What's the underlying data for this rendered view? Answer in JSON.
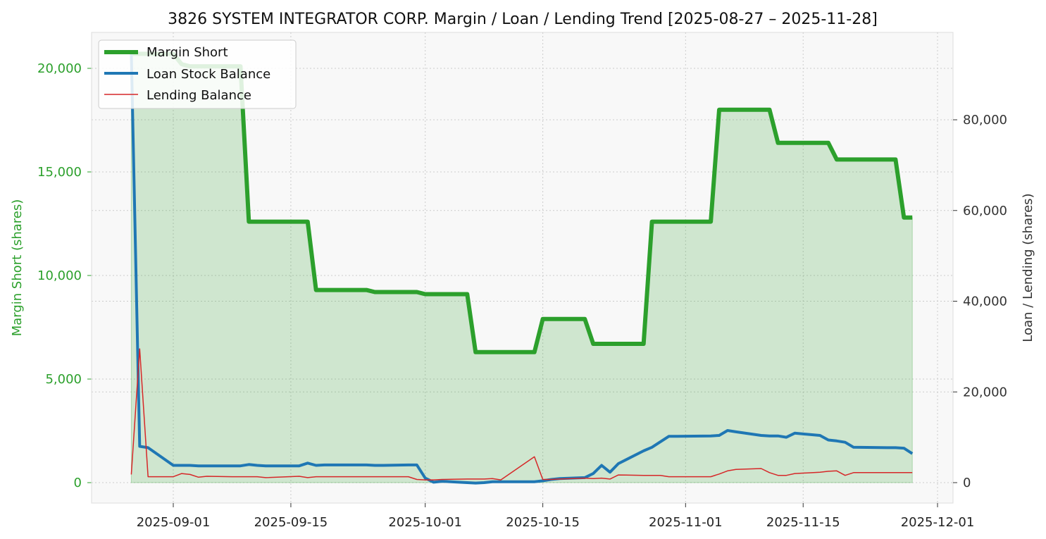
{
  "chart_data": {
    "type": "line",
    "title": "3826 SYSTEM INTEGRATOR CORP. Margin / Loan / Lending Trend [2025-08-27 – 2025-11-28]",
    "xlabel": "",
    "ylabel_left": "Margin Short (shares)",
    "ylabel_right": "Loan / Lending (shares)",
    "x_ticks": [
      "2025-09-01",
      "2025-09-15",
      "2025-10-01",
      "2025-10-15",
      "2025-11-01",
      "2025-11-15",
      "2025-12-01"
    ],
    "y_left_ticks": [
      "0",
      "5,000",
      "10,000",
      "15,000",
      "20,000"
    ],
    "y_right_ticks": [
      "0",
      "20,000",
      "40,000",
      "60,000",
      "80,000"
    ],
    "y_left_lim": [
      -1000,
      21700
    ],
    "y_right_lim": [
      -4500,
      99000
    ],
    "grid": true,
    "legend_position": "top-left",
    "colors": {
      "margin": "#2ca02c",
      "margin_fill": "#2ca02c",
      "loan": "#1f77b4",
      "lending": "#d62728",
      "left_axis": "#2ca02c",
      "right_axis": "#333333",
      "grid": "#cccccc",
      "plot_bg": "#f8f8f8",
      "frame": "#dddddd"
    },
    "series": [
      {
        "name": "Margin Short",
        "axis": "left",
        "color": "#2ca02c",
        "line_width": 6,
        "fill": true,
        "x": [
          "2025-08-27",
          "2025-08-28",
          "2025-08-29",
          "2025-09-01",
          "2025-09-02",
          "2025-09-03",
          "2025-09-04",
          "2025-09-05",
          "2025-09-08",
          "2025-09-09",
          "2025-09-10",
          "2025-09-11",
          "2025-09-12",
          "2025-09-16",
          "2025-09-17",
          "2025-09-18",
          "2025-09-19",
          "2025-09-22",
          "2025-09-24",
          "2025-09-25",
          "2025-09-26",
          "2025-09-29",
          "2025-09-30",
          "2025-10-01",
          "2025-10-02",
          "2025-10-03",
          "2025-10-06",
          "2025-10-07",
          "2025-10-08",
          "2025-10-09",
          "2025-10-10",
          "2025-10-14",
          "2025-10-15",
          "2025-10-16",
          "2025-10-17",
          "2025-10-20",
          "2025-10-21",
          "2025-10-22",
          "2025-10-23",
          "2025-10-24",
          "2025-10-27",
          "2025-10-28",
          "2025-10-29",
          "2025-10-30",
          "2025-10-31",
          "2025-11-04",
          "2025-11-05",
          "2025-11-06",
          "2025-11-07",
          "2025-11-10",
          "2025-11-11",
          "2025-11-12",
          "2025-11-13",
          "2025-11-14",
          "2025-11-17",
          "2025-11-18",
          "2025-11-19",
          "2025-11-20",
          "2025-11-21",
          "2025-11-25",
          "2025-11-26",
          "2025-11-27",
          "2025-11-28"
        ],
        "values": [
          20700,
          20700,
          20700,
          20700,
          20200,
          20100,
          20100,
          20100,
          20100,
          20100,
          12600,
          12600,
          12600,
          12600,
          12600,
          9300,
          9300,
          9300,
          9300,
          9200,
          9200,
          9200,
          9200,
          9100,
          9100,
          9100,
          9100,
          6300,
          6300,
          6300,
          6300,
          6300,
          7900,
          7900,
          7900,
          7900,
          6700,
          6700,
          6700,
          6700,
          6700,
          12600,
          12600,
          12600,
          12600,
          12600,
          18000,
          18000,
          18000,
          18000,
          18000,
          16400,
          16400,
          16400,
          16400,
          16400,
          15600,
          15600,
          15600,
          15600,
          15600,
          12800,
          12800
        ]
      },
      {
        "name": "Loan Stock Balance",
        "axis": "right",
        "color": "#1f77b4",
        "line_width": 4,
        "fill": false,
        "x": [
          "2025-08-27",
          "2025-08-28",
          "2025-08-29",
          "2025-09-01",
          "2025-09-02",
          "2025-09-03",
          "2025-09-04",
          "2025-09-05",
          "2025-09-08",
          "2025-09-09",
          "2025-09-10",
          "2025-09-11",
          "2025-09-12",
          "2025-09-16",
          "2025-09-17",
          "2025-09-18",
          "2025-09-19",
          "2025-09-22",
          "2025-09-24",
          "2025-09-25",
          "2025-09-26",
          "2025-09-29",
          "2025-09-30",
          "2025-10-01",
          "2025-10-02",
          "2025-10-03",
          "2025-10-06",
          "2025-10-07",
          "2025-10-08",
          "2025-10-09",
          "2025-10-10",
          "2025-10-14",
          "2025-10-15",
          "2025-10-16",
          "2025-10-17",
          "2025-10-20",
          "2025-10-21",
          "2025-10-22",
          "2025-10-23",
          "2025-10-24",
          "2025-10-27",
          "2025-10-28",
          "2025-10-29",
          "2025-10-30",
          "2025-10-31",
          "2025-11-04",
          "2025-11-05",
          "2025-11-06",
          "2025-11-07",
          "2025-11-10",
          "2025-11-11",
          "2025-11-12",
          "2025-11-13",
          "2025-11-14",
          "2025-11-17",
          "2025-11-18",
          "2025-11-19",
          "2025-11-20",
          "2025-11-21",
          "2025-11-25",
          "2025-11-26",
          "2025-11-27",
          "2025-11-28"
        ],
        "values": [
          95000,
          8000,
          7700,
          3800,
          3800,
          3800,
          3700,
          3700,
          3700,
          3700,
          4000,
          3800,
          3700,
          3700,
          4300,
          3800,
          3900,
          3900,
          3900,
          3800,
          3800,
          3900,
          3900,
          1000,
          100,
          300,
          0,
          -100,
          0,
          200,
          200,
          200,
          400,
          700,
          900,
          1100,
          2000,
          3800,
          2300,
          4200,
          7000,
          7800,
          9000,
          10200,
          10200,
          10300,
          10400,
          11500,
          11200,
          10400,
          10300,
          10300,
          10000,
          10900,
          10400,
          9400,
          9200,
          8900,
          7800,
          7700,
          7700,
          7600,
          6400
        ]
      },
      {
        "name": "Lending Balance",
        "axis": "right",
        "color": "#d62728",
        "line_width": 1.5,
        "fill": false,
        "x": [
          "2025-08-27",
          "2025-08-28",
          "2025-08-29",
          "2025-09-01",
          "2025-09-02",
          "2025-09-03",
          "2025-09-04",
          "2025-09-05",
          "2025-09-08",
          "2025-09-09",
          "2025-09-10",
          "2025-09-11",
          "2025-09-12",
          "2025-09-16",
          "2025-09-17",
          "2025-09-18",
          "2025-09-19",
          "2025-09-22",
          "2025-09-24",
          "2025-09-25",
          "2025-09-26",
          "2025-09-29",
          "2025-09-30",
          "2025-10-01",
          "2025-10-02",
          "2025-10-03",
          "2025-10-06",
          "2025-10-07",
          "2025-10-08",
          "2025-10-09",
          "2025-10-10",
          "2025-10-14",
          "2025-10-15",
          "2025-10-16",
          "2025-10-17",
          "2025-10-20",
          "2025-10-21",
          "2025-10-22",
          "2025-10-23",
          "2025-10-24",
          "2025-10-27",
          "2025-10-28",
          "2025-10-29",
          "2025-10-30",
          "2025-10-31",
          "2025-11-04",
          "2025-11-05",
          "2025-11-06",
          "2025-11-07",
          "2025-11-10",
          "2025-11-11",
          "2025-11-12",
          "2025-11-13",
          "2025-11-14",
          "2025-11-17",
          "2025-11-18",
          "2025-11-19",
          "2025-11-20",
          "2025-11-21",
          "2025-11-25",
          "2025-11-26",
          "2025-11-27",
          "2025-11-28"
        ],
        "values": [
          1800,
          29500,
          1300,
          1300,
          2000,
          1800,
          1200,
          1400,
          1300,
          1300,
          1300,
          1300,
          1100,
          1400,
          1100,
          1300,
          1300,
          1300,
          1300,
          1300,
          1300,
          1300,
          700,
          600,
          600,
          700,
          800,
          800,
          800,
          900,
          600,
          5700,
          700,
          700,
          800,
          1000,
          900,
          1000,
          800,
          1700,
          1600,
          1600,
          1600,
          1300,
          1300,
          1300,
          1900,
          2600,
          2900,
          3100,
          2200,
          1600,
          1600,
          2000,
          2300,
          2500,
          2600,
          1600,
          2200,
          2200,
          2200,
          2200,
          2200
        ]
      }
    ]
  }
}
